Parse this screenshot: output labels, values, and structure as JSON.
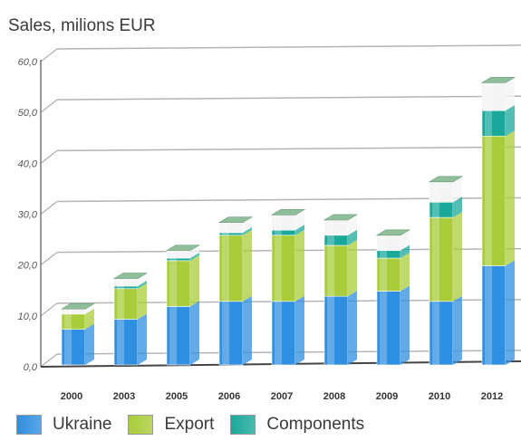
{
  "chart_data": {
    "type": "bar",
    "stacked": true,
    "title": "Sales, milions EUR",
    "categories": [
      "2000",
      "2003",
      "2005",
      "2006",
      "2007",
      "2008",
      "2009",
      "2010",
      "2012"
    ],
    "series": [
      {
        "name": "Ukraine",
        "values": [
          7,
          9,
          11.5,
          12.5,
          12.5,
          13.5,
          14.5,
          12.5,
          19.5
        ],
        "color": "#2f8fe0"
      },
      {
        "name": "Export",
        "values": [
          3,
          6,
          9,
          13,
          13,
          10,
          6.5,
          16.5,
          25.5
        ],
        "color": "#a9cc3a"
      },
      {
        "name": "Components",
        "values": [
          0,
          0.5,
          0.5,
          0.5,
          1,
          2,
          1.5,
          3,
          5
        ],
        "color": "#1aa89a"
      },
      {
        "name": "",
        "values": [
          1,
          1.5,
          1.5,
          2,
          3,
          3,
          3,
          4,
          5.5
        ],
        "color": "#f4f4f4"
      }
    ],
    "ylim": [
      0,
      60
    ],
    "yticks": [
      "0,0",
      "10,0",
      "20,0",
      "30,0",
      "40,0",
      "50,0",
      "60,0"
    ],
    "grid": true
  },
  "legend": {
    "items": [
      {
        "label": "Ukraine",
        "color": "#2f8fe0"
      },
      {
        "label": "Export",
        "color": "#a9cc3a"
      },
      {
        "label": "Components",
        "color": "#1aa89a"
      }
    ]
  }
}
